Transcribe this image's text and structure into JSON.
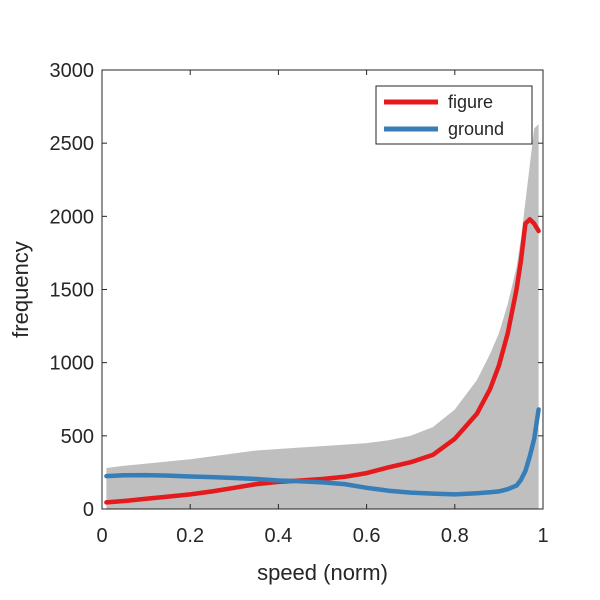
{
  "chart_data": {
    "type": "line",
    "xlabel": "speed (norm)",
    "ylabel": "frequency",
    "xlim": [
      0,
      1
    ],
    "ylim": [
      0,
      3000
    ],
    "x_ticks": [
      "0",
      "0.2",
      "0.4",
      "0.6",
      "0.8",
      "1"
    ],
    "y_ticks": [
      "0",
      "500",
      "1000",
      "1500",
      "2000",
      "2500",
      "3000"
    ],
    "grid": false,
    "legend_position": "top-right",
    "series": [
      {
        "name": "figure",
        "color": "#e41a1c",
        "x": [
          0.01,
          0.05,
          0.1,
          0.15,
          0.2,
          0.25,
          0.3,
          0.35,
          0.4,
          0.45,
          0.5,
          0.55,
          0.6,
          0.65,
          0.7,
          0.75,
          0.8,
          0.85,
          0.88,
          0.9,
          0.92,
          0.94,
          0.95,
          0.96,
          0.97,
          0.98,
          0.99
        ],
        "y": [
          45,
          55,
          70,
          85,
          100,
          120,
          145,
          170,
          185,
          195,
          205,
          220,
          245,
          285,
          320,
          370,
          480,
          650,
          820,
          980,
          1200,
          1500,
          1700,
          1950,
          1980,
          1950,
          1900
        ]
      },
      {
        "name": "ground",
        "color": "#377eb8",
        "x": [
          0.01,
          0.05,
          0.1,
          0.15,
          0.2,
          0.25,
          0.3,
          0.35,
          0.4,
          0.45,
          0.5,
          0.55,
          0.6,
          0.65,
          0.7,
          0.75,
          0.8,
          0.85,
          0.88,
          0.9,
          0.92,
          0.94,
          0.95,
          0.96,
          0.97,
          0.98,
          0.99
        ],
        "y": [
          225,
          230,
          232,
          228,
          222,
          218,
          212,
          205,
          195,
          190,
          182,
          170,
          145,
          125,
          112,
          105,
          100,
          108,
          115,
          120,
          135,
          160,
          200,
          260,
          360,
          480,
          680
        ]
      }
    ],
    "band": {
      "color": "#bfbfbf",
      "x": [
        0.01,
        0.05,
        0.1,
        0.2,
        0.3,
        0.35,
        0.4,
        0.45,
        0.5,
        0.55,
        0.6,
        0.65,
        0.7,
        0.75,
        0.8,
        0.85,
        0.88,
        0.9,
        0.92,
        0.94,
        0.95,
        0.96,
        0.97,
        0.98,
        0.99
      ],
      "upper": [
        280,
        295,
        310,
        340,
        380,
        400,
        410,
        420,
        430,
        440,
        450,
        470,
        500,
        560,
        680,
        880,
        1060,
        1200,
        1400,
        1650,
        1850,
        2100,
        2350,
        2600,
        2630
      ],
      "lower": [
        0,
        0,
        0,
        0,
        0,
        0,
        0,
        0,
        0,
        0,
        0,
        0,
        0,
        0,
        0,
        0,
        0,
        0,
        0,
        0,
        0,
        0,
        0,
        0,
        0
      ]
    }
  }
}
